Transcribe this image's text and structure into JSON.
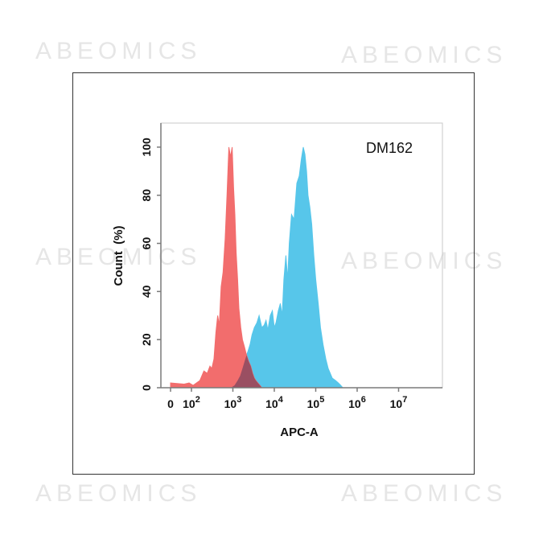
{
  "watermark_text": "ABEOMICS",
  "colors": {
    "control": "#f26d6d",
    "sample": "#57c6ea",
    "overlap": "#8b4a60",
    "axis": "#7a7a7a"
  },
  "chart_data": {
    "type": "area",
    "title": "",
    "annotation": "DM162",
    "xlabel": "APC-A",
    "ylabel": "Count  (%)",
    "xscale": "log",
    "xlim": [
      0,
      10000000
    ],
    "ylim": [
      0,
      110
    ],
    "x_ticks": [
      {
        "value": 0,
        "base": "0",
        "exp": ""
      },
      {
        "value": 100,
        "base": "10",
        "exp": "2"
      },
      {
        "value": 1000,
        "base": "10",
        "exp": "3"
      },
      {
        "value": 10000,
        "base": "10",
        "exp": "4"
      },
      {
        "value": 100000,
        "base": "10",
        "exp": "5"
      },
      {
        "value": 1000000,
        "base": "10",
        "exp": "6"
      },
      {
        "value": 10000000,
        "base": "10",
        "exp": "7"
      }
    ],
    "y_ticks": [
      0,
      20,
      40,
      60,
      80,
      100
    ],
    "series": [
      {
        "key": "control",
        "x": [
          0,
          20,
          60,
          110,
          160,
          200,
          240,
          280,
          310,
          350,
          390,
          430,
          470,
          520,
          580,
          650,
          720,
          800,
          880,
          960,
          1040,
          1120,
          1200,
          1300,
          1400,
          1550,
          1700,
          1900,
          2100,
          2400,
          2700,
          3000,
          3300,
          3600,
          4000,
          4500,
          5000
        ],
        "y": [
          2,
          1.5,
          2,
          1,
          3,
          7,
          6,
          9,
          8,
          12,
          23,
          30,
          26,
          42,
          48,
          62,
          80,
          100,
          96,
          100,
          83,
          72,
          56,
          45,
          33,
          25,
          20,
          17,
          14,
          11,
          9,
          6,
          4,
          3,
          2,
          1,
          0
        ]
      },
      {
        "key": "sample",
        "x": [
          900,
          1100,
          1300,
          1500,
          1700,
          2000,
          2300,
          2600,
          2900,
          3300,
          3800,
          4300,
          5000,
          5700,
          6300,
          7000,
          8000,
          9000,
          10000,
          11000,
          12500,
          14000,
          15500,
          17000,
          19000,
          21000,
          23000,
          26000,
          30000,
          35000,
          40000,
          45000,
          50000,
          55000,
          60000,
          65000,
          72000,
          80000,
          90000,
          100000,
          115000,
          130000,
          150000,
          175000,
          200000,
          250000,
          300000,
          350000,
          400000,
          450000
        ],
        "y": [
          0,
          1,
          3,
          5,
          8,
          12,
          15,
          18,
          22,
          25,
          27,
          30,
          25,
          26,
          28,
          24,
          30,
          32,
          25,
          27,
          32,
          35,
          30,
          45,
          55,
          45,
          60,
          72,
          70,
          85,
          88,
          95,
          100,
          97,
          90,
          80,
          75,
          68,
          55,
          45,
          35,
          25,
          18,
          12,
          8,
          4,
          3,
          2,
          1,
          0
        ]
      }
    ]
  }
}
